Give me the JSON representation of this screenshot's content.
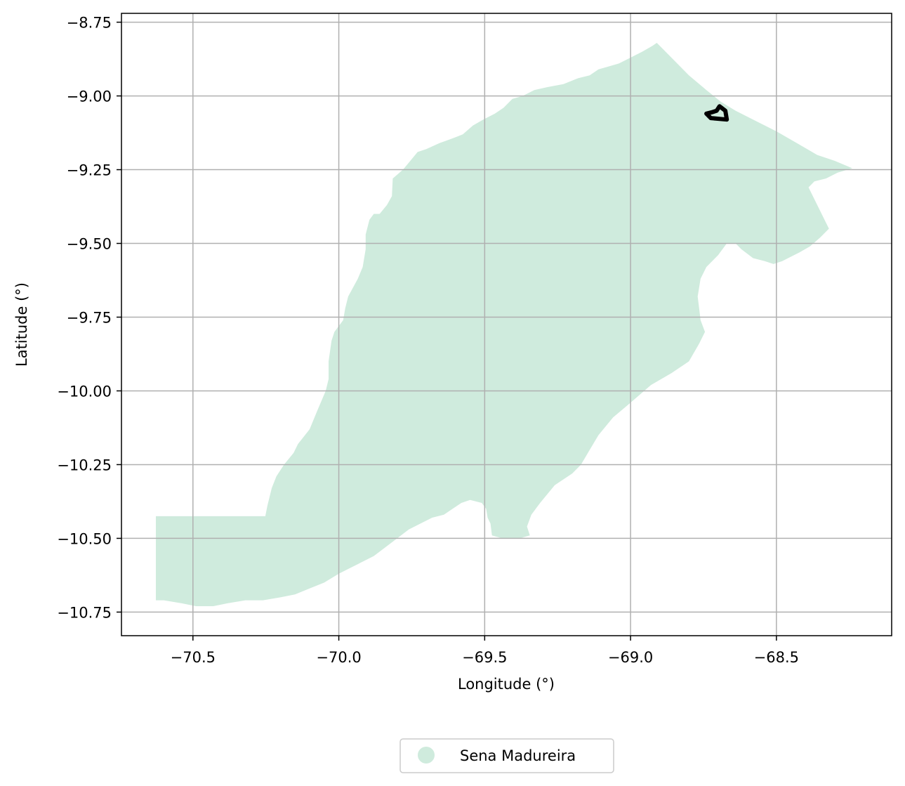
{
  "chart_data": {
    "type": "map",
    "xlabel": "Longitude (°)",
    "ylabel": "Latitude (°)",
    "xlim": [
      -70.745,
      -68.105
    ],
    "ylim": [
      -10.83,
      -8.72
    ],
    "xticks": [
      -70.5,
      -70.0,
      -69.5,
      -69.0,
      -68.5
    ],
    "xtick_labels": [
      "−70.5",
      "−70.0",
      "−69.5",
      "−69.0",
      "−68.5"
    ],
    "yticks": [
      -8.75,
      -9.0,
      -9.25,
      -9.5,
      -9.75,
      -10.0,
      -10.25,
      -10.5,
      -10.75
    ],
    "ytick_labels": [
      "−8.75",
      "−9.00",
      "−9.25",
      "−9.50",
      "−9.75",
      "−10.00",
      "−10.25",
      "−10.50",
      "−10.75"
    ],
    "grid": true,
    "legend": {
      "placement": "bottom-center, below plot",
      "entries": [
        {
          "label": "Sena Madureira",
          "color": "#cfebdd",
          "marker": "circle"
        }
      ]
    },
    "region": {
      "name": "Sena Madureira",
      "fill_color": "#cfebdd",
      "boundary": [
        [
          -70.627,
          -10.425
        ],
        [
          -70.252,
          -10.425
        ],
        [
          -70.245,
          -10.39
        ],
        [
          -70.23,
          -10.33
        ],
        [
          -70.214,
          -10.29
        ],
        [
          -70.188,
          -10.25
        ],
        [
          -70.155,
          -10.21
        ],
        [
          -70.14,
          -10.18
        ],
        [
          -70.1,
          -10.13
        ],
        [
          -70.075,
          -10.07
        ],
        [
          -70.045,
          -10.0
        ],
        [
          -70.035,
          -9.96
        ],
        [
          -70.035,
          -9.9
        ],
        [
          -70.025,
          -9.83
        ],
        [
          -70.015,
          -9.8
        ],
        [
          -69.985,
          -9.76
        ],
        [
          -69.978,
          -9.72
        ],
        [
          -69.968,
          -9.68
        ],
        [
          -69.935,
          -9.62
        ],
        [
          -69.918,
          -9.58
        ],
        [
          -69.908,
          -9.52
        ],
        [
          -69.908,
          -9.47
        ],
        [
          -69.895,
          -9.42
        ],
        [
          -69.88,
          -9.4
        ],
        [
          -69.86,
          -9.4
        ],
        [
          -69.835,
          -9.37
        ],
        [
          -69.818,
          -9.34
        ],
        [
          -69.815,
          -9.28
        ],
        [
          -69.78,
          -9.25
        ],
        [
          -69.755,
          -9.22
        ],
        [
          -69.73,
          -9.19
        ],
        [
          -69.7,
          -9.18
        ],
        [
          -69.655,
          -9.16
        ],
        [
          -69.6,
          -9.14
        ],
        [
          -69.575,
          -9.13
        ],
        [
          -69.54,
          -9.1
        ],
        [
          -69.505,
          -9.08
        ],
        [
          -69.465,
          -9.06
        ],
        [
          -69.435,
          -9.04
        ],
        [
          -69.405,
          -9.01
        ],
        [
          -69.37,
          -9.0
        ],
        [
          -69.33,
          -8.98
        ],
        [
          -69.285,
          -8.97
        ],
        [
          -69.23,
          -8.96
        ],
        [
          -69.18,
          -8.94
        ],
        [
          -69.14,
          -8.93
        ],
        [
          -69.11,
          -8.91
        ],
        [
          -69.075,
          -8.9
        ],
        [
          -69.04,
          -8.89
        ],
        [
          -69.0,
          -8.87
        ],
        [
          -68.96,
          -8.85
        ],
        [
          -68.925,
          -8.83
        ],
        [
          -68.91,
          -8.82
        ],
        [
          -68.87,
          -8.86
        ],
        [
          -68.8,
          -8.93
        ],
        [
          -68.74,
          -8.98
        ],
        [
          -68.69,
          -9.02
        ],
        [
          -68.64,
          -9.05
        ],
        [
          -68.58,
          -9.08
        ],
        [
          -68.5,
          -9.12
        ],
        [
          -68.43,
          -9.16
        ],
        [
          -68.36,
          -9.2
        ],
        [
          -68.3,
          -9.22
        ],
        [
          -68.24,
          -9.245
        ],
        [
          -68.29,
          -9.26
        ],
        [
          -68.33,
          -9.28
        ],
        [
          -68.37,
          -9.29
        ],
        [
          -68.39,
          -9.31
        ],
        [
          -68.33,
          -9.43
        ],
        [
          -68.32,
          -9.45
        ],
        [
          -68.35,
          -9.48
        ],
        [
          -68.385,
          -9.51
        ],
        [
          -68.42,
          -9.53
        ],
        [
          -68.46,
          -9.55
        ],
        [
          -68.48,
          -9.56
        ],
        [
          -68.51,
          -9.57
        ],
        [
          -68.54,
          -9.56
        ],
        [
          -68.58,
          -9.55
        ],
        [
          -68.62,
          -9.52
        ],
        [
          -68.64,
          -9.5
        ],
        [
          -68.67,
          -9.5
        ],
        [
          -68.7,
          -9.54
        ],
        [
          -68.74,
          -9.58
        ],
        [
          -68.76,
          -9.62
        ],
        [
          -68.77,
          -9.68
        ],
        [
          -68.765,
          -9.72
        ],
        [
          -68.76,
          -9.76
        ],
        [
          -68.745,
          -9.8
        ],
        [
          -68.765,
          -9.84
        ],
        [
          -68.8,
          -9.9
        ],
        [
          -68.86,
          -9.94
        ],
        [
          -68.93,
          -9.98
        ],
        [
          -69.0,
          -10.04
        ],
        [
          -69.06,
          -10.09
        ],
        [
          -69.11,
          -10.15
        ],
        [
          -69.14,
          -10.2
        ],
        [
          -69.17,
          -10.25
        ],
        [
          -69.2,
          -10.28
        ],
        [
          -69.26,
          -10.32
        ],
        [
          -69.31,
          -10.38
        ],
        [
          -69.34,
          -10.42
        ],
        [
          -69.355,
          -10.46
        ],
        [
          -69.345,
          -10.49
        ],
        [
          -69.38,
          -10.5
        ],
        [
          -69.44,
          -10.5
        ],
        [
          -69.475,
          -10.49
        ],
        [
          -69.48,
          -10.45
        ],
        [
          -69.49,
          -10.43
        ],
        [
          -69.495,
          -10.4
        ],
        [
          -69.51,
          -10.38
        ],
        [
          -69.55,
          -10.37
        ],
        [
          -69.58,
          -10.38
        ],
        [
          -69.61,
          -10.4
        ],
        [
          -69.64,
          -10.42
        ],
        [
          -69.68,
          -10.43
        ],
        [
          -69.72,
          -10.45
        ],
        [
          -69.76,
          -10.47
        ],
        [
          -69.8,
          -10.5
        ],
        [
          -69.84,
          -10.53
        ],
        [
          -69.88,
          -10.56
        ],
        [
          -69.92,
          -10.58
        ],
        [
          -69.96,
          -10.6
        ],
        [
          -70.0,
          -10.62
        ],
        [
          -70.05,
          -10.65
        ],
        [
          -70.1,
          -10.67
        ],
        [
          -70.15,
          -10.69
        ],
        [
          -70.2,
          -10.7
        ],
        [
          -70.26,
          -10.71
        ],
        [
          -70.32,
          -10.71
        ],
        [
          -70.38,
          -10.72
        ],
        [
          -70.43,
          -10.73
        ],
        [
          -70.49,
          -10.73
        ],
        [
          -70.54,
          -10.72
        ],
        [
          -70.6,
          -10.71
        ],
        [
          -70.627,
          -10.71
        ]
      ]
    },
    "boundary_feature": {
      "stroke_color": "#000000",
      "points": [
        [
          -68.74,
          -9.06
        ],
        [
          -68.725,
          -9.075
        ],
        [
          -68.67,
          -9.08
        ],
        [
          -68.675,
          -9.05
        ],
        [
          -68.695,
          -9.035
        ],
        [
          -68.705,
          -9.05
        ],
        [
          -68.72,
          -9.055
        ],
        [
          -68.74,
          -9.06
        ]
      ]
    }
  }
}
